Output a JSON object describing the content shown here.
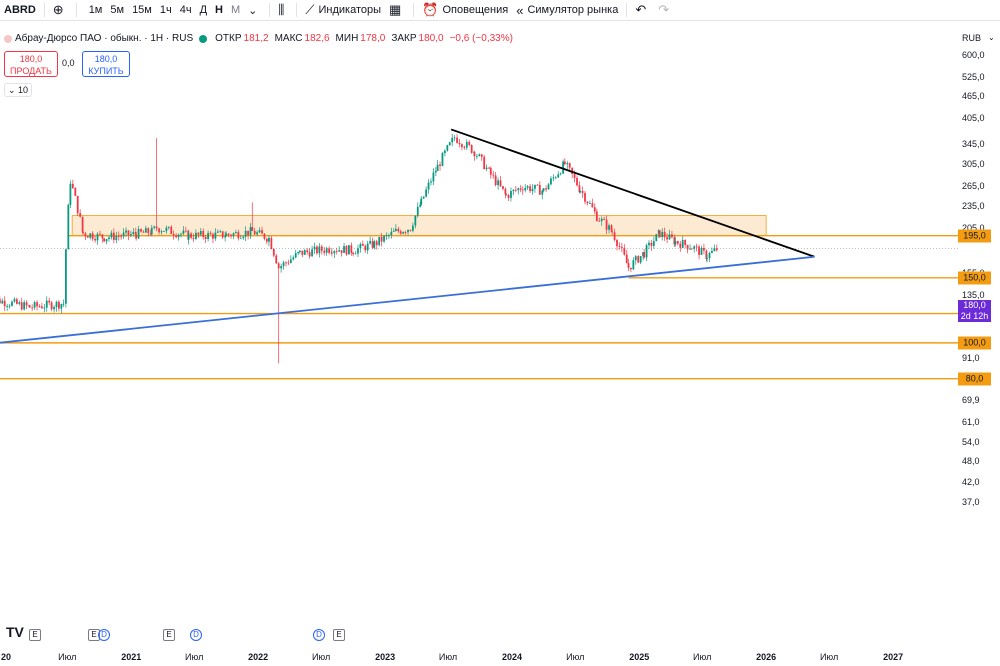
{
  "toolbar": {
    "symbol": "ABRD",
    "intervals": [
      "1м",
      "5м",
      "15м",
      "1ч",
      "4ч",
      "Д",
      "Н",
      "М"
    ],
    "active_interval": "Н",
    "indicators_label": "Индикаторы",
    "alerts_label": "Оповещения",
    "replay_label": "Симулятор рынка",
    "icons": [
      "add-symbol-icon",
      "chevron-down-icon",
      "candles-icon",
      "indicators-icon",
      "templates-icon",
      "alarm-icon",
      "replay-icon",
      "undo-icon",
      "redo-icon"
    ]
  },
  "legend": {
    "title": "Абрау-Дюрсо ПАО · обыкн. · 1Н · RUS",
    "open_label": "ОТКР",
    "open": "181,2",
    "high_label": "МАКС",
    "high": "182,6",
    "low_label": "МИН",
    "low": "178,0",
    "close_label": "ЗАКР",
    "close": "180,0",
    "change": "−0,6 (−0,33%)"
  },
  "trade": {
    "sell_price": "180,0",
    "sell_label": "ПРОДАТЬ",
    "spread": "0,0",
    "buy_price": "180,0",
    "buy_label": "КУПИТЬ",
    "volume": "10"
  },
  "axis": {
    "currency": "RUB",
    "last_price": "180,0",
    "countdown": "2d 12h"
  },
  "events": [
    "E",
    "E",
    "D",
    "E",
    "D",
    "D",
    "E"
  ],
  "logo": "TV",
  "colors": {
    "up": "#089981",
    "down": "#f23645",
    "support": "#f39c12",
    "trend_up": "#3a6fd8",
    "trend_down": "#000000",
    "zone_fill": "#fbe3c4",
    "last": "#6c2bd9"
  },
  "chart_data": {
    "type": "candlestick",
    "title": "Абрау-Дюрсо ПАО · обыкн. · 1Н · RUS",
    "price_scale": "log",
    "y_ticks": [
      "600,0",
      "525,0",
      "465,0",
      "405,0",
      "345,0",
      "305,0",
      "265,0",
      "235,0",
      "205,0",
      "155,0",
      "135,0",
      "91,0",
      "69,9",
      "61,0",
      "54,0",
      "48,0",
      "42,0",
      "37,0"
    ],
    "y_tick_values": [
      600,
      525,
      465,
      405,
      345,
      305,
      265,
      235,
      205,
      155,
      135,
      91,
      69.9,
      61,
      54,
      48,
      42,
      37
    ],
    "x_ticks": [
      {
        "label": "20",
        "date": "2020-01-01",
        "year": true
      },
      {
        "label": "Июл",
        "date": "2020-07-01",
        "year": false
      },
      {
        "label": "2021",
        "date": "2021-01-01",
        "year": true
      },
      {
        "label": "Июл",
        "date": "2021-07-01",
        "year": false
      },
      {
        "label": "2022",
        "date": "2022-01-01",
        "year": true
      },
      {
        "label": "Июл",
        "date": "2022-07-01",
        "year": false
      },
      {
        "label": "2023",
        "date": "2023-01-01",
        "year": true
      },
      {
        "label": "Июл",
        "date": "2023-07-01",
        "year": false
      },
      {
        "label": "2024",
        "date": "2024-01-01",
        "year": true
      },
      {
        "label": "Июл",
        "date": "2024-07-01",
        "year": false
      },
      {
        "label": "2025",
        "date": "2025-01-01",
        "year": true
      },
      {
        "label": "Июл",
        "date": "2025-07-01",
        "year": false
      },
      {
        "label": "2026",
        "date": "2026-01-01",
        "year": true
      },
      {
        "label": "Июл",
        "date": "2026-07-01",
        "year": false
      },
      {
        "label": "2027",
        "date": "2027-01-01",
        "year": true
      }
    ],
    "support_levels": [
      {
        "label": "195,0",
        "value": 195,
        "start": "2020-07-01"
      },
      {
        "label": "150,0",
        "value": 150,
        "start": "2024-12-01"
      },
      {
        "label": "120,0",
        "value": 120,
        "start": "2019-11-01"
      },
      {
        "label": "100,0",
        "value": 100,
        "start": "2019-11-01"
      },
      {
        "label": "80,0",
        "value": 80,
        "start": "2019-11-01"
      }
    ],
    "zone": {
      "top": 221,
      "bottom": 195,
      "start": "2020-07-15",
      "end": "2026-01-01"
    },
    "trend_lines": [
      {
        "name": "descending",
        "from": {
          "date": "2023-07-10",
          "price": 378
        },
        "to": {
          "date": "2026-05-20",
          "price": 171
        }
      },
      {
        "name": "ascending",
        "from": {
          "date": "2019-11-01",
          "price": 99
        },
        "to": {
          "date": "2026-05-20",
          "price": 171
        }
      }
    ],
    "last_price": 180,
    "ohlc_weekly_approx": [
      {
        "date": "2019-11-15",
        "close": 132
      },
      {
        "date": "2020-03-15",
        "close": 125
      },
      {
        "date": "2020-06-20",
        "close": 128
      },
      {
        "date": "2020-07-10",
        "close": 275
      },
      {
        "date": "2020-08-15",
        "close": 198
      },
      {
        "date": "2020-10-15",
        "close": 193
      },
      {
        "date": "2021-01-15",
        "close": 197
      },
      {
        "date": "2021-03-01",
        "close": 200
      },
      {
        "date": "2021-03-15",
        "close": 205,
        "high": 358
      },
      {
        "date": "2021-06-15",
        "close": 195
      },
      {
        "date": "2021-10-01",
        "close": 196
      },
      {
        "date": "2021-12-15",
        "close": 200,
        "high": 240
      },
      {
        "date": "2022-02-01",
        "close": 192
      },
      {
        "date": "2022-03-01",
        "close": 160,
        "low": 88
      },
      {
        "date": "2022-05-01",
        "close": 175
      },
      {
        "date": "2022-08-01",
        "close": 180
      },
      {
        "date": "2022-10-01",
        "close": 178
      },
      {
        "date": "2022-12-01",
        "close": 185
      },
      {
        "date": "2023-02-01",
        "close": 200
      },
      {
        "date": "2023-03-15",
        "close": 205
      },
      {
        "date": "2023-04-15",
        "close": 240
      },
      {
        "date": "2023-06-01",
        "close": 300
      },
      {
        "date": "2023-07-20",
        "close": 360
      },
      {
        "date": "2023-09-15",
        "close": 330
      },
      {
        "date": "2023-11-01",
        "close": 285
      },
      {
        "date": "2023-12-15",
        "close": 250
      },
      {
        "date": "2024-02-01",
        "close": 265
      },
      {
        "date": "2024-04-01",
        "close": 258
      },
      {
        "date": "2024-06-01",
        "close": 305
      },
      {
        "date": "2024-07-15",
        "close": 260
      },
      {
        "date": "2024-09-01",
        "close": 220
      },
      {
        "date": "2024-10-15",
        "close": 200
      },
      {
        "date": "2024-12-01",
        "close": 160
      },
      {
        "date": "2025-01-15",
        "close": 175
      },
      {
        "date": "2025-03-01",
        "close": 198
      },
      {
        "date": "2025-04-15",
        "close": 188
      },
      {
        "date": "2025-06-01",
        "close": 182
      },
      {
        "date": "2025-07-15",
        "close": 172
      },
      {
        "date": "2025-08-15",
        "close": 180
      }
    ]
  }
}
